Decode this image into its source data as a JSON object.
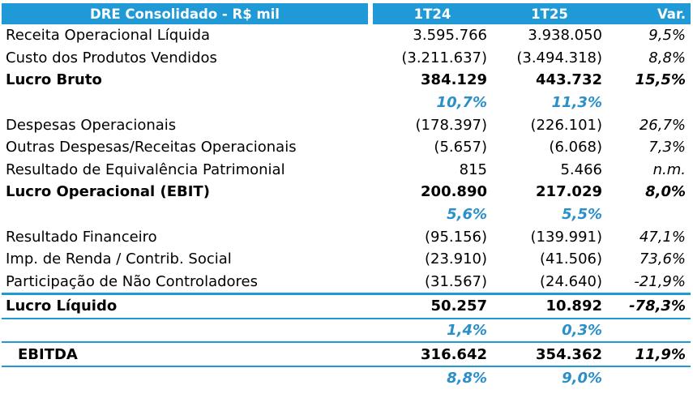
{
  "header": {
    "title": "DRE Consolidado - R$ mil",
    "col1": "1T24",
    "col2": "1T25",
    "col3": "Var."
  },
  "rows": [
    {
      "label": "Receita Operacional Líquida",
      "v1": "3.595.766",
      "v2": "3.938.050",
      "var": "9,5%"
    },
    {
      "label": "Custo dos Produtos Vendidos",
      "v1": "(3.211.637)",
      "v2": "(3.494.318)",
      "var": "8,8%"
    },
    {
      "label": "Lucro Bruto",
      "v1": "384.129",
      "v2": "443.732",
      "var": "15,5%"
    },
    {
      "label": "",
      "v1": "10,7%",
      "v2": "11,3%",
      "var": ""
    },
    {
      "label": "Despesas Operacionais",
      "v1": "(178.397)",
      "v2": "(226.101)",
      "var": "26,7%"
    },
    {
      "label": "Outras Despesas/Receitas Operacionais",
      "v1": "(5.657)",
      "v2": "(6.068)",
      "var": "7,3%"
    },
    {
      "label": "Resultado de Equivalência Patrimonial",
      "v1": "815",
      "v2": "5.466",
      "var": "n.m."
    },
    {
      "label": "Lucro Operacional (EBIT)",
      "v1": "200.890",
      "v2": "217.029",
      "var": "8,0%"
    },
    {
      "label": "",
      "v1": "5,6%",
      "v2": "5,5%",
      "var": ""
    },
    {
      "label": "Resultado Financeiro",
      "v1": "(95.156)",
      "v2": "(139.991)",
      "var": "47,1%"
    },
    {
      "label": "Imp. de Renda / Contrib. Social",
      "v1": "(23.910)",
      "v2": "(41.506)",
      "var": "73,6%"
    },
    {
      "label": "Participação de Não Controladores",
      "v1": "(31.567)",
      "v2": "(24.640)",
      "var": "-21,9%"
    },
    {
      "label": "Lucro Líquido",
      "v1": "50.257",
      "v2": "10.892",
      "var": "-78,3%"
    },
    {
      "label": "",
      "v1": "1,4%",
      "v2": "0,3%",
      "var": ""
    },
    {
      "label": "EBITDA",
      "v1": "316.642",
      "v2": "354.362",
      "var": "11,9%"
    },
    {
      "label": "",
      "v1": "8,8%",
      "v2": "9,0%",
      "var": ""
    }
  ]
}
